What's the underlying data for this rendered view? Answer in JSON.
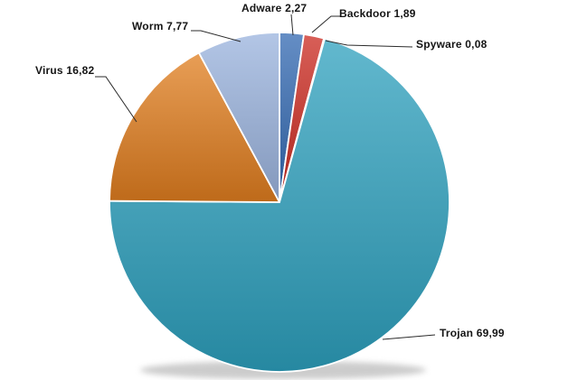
{
  "chart_data": {
    "type": "pie",
    "title": "",
    "legend": "none",
    "labels_style": "outside-with-leader-lines",
    "direction": "clockwise",
    "start_angle_deg": 0,
    "background_color": "#FFFFFF",
    "leader_line_color": "#2B2B2B",
    "label_text_color": "#151515",
    "slices": [
      {
        "name": "Adware",
        "value": 2.27,
        "label": "Adware 2,27",
        "color": "#3168B1"
      },
      {
        "name": "Backdoor",
        "value": 1.89,
        "label": "Backdoor 1,89",
        "color": "#CB2A20"
      },
      {
        "name": "Spyware",
        "value": 0.08,
        "label": "Spyware 0,08",
        "color": "#86A5D3"
      },
      {
        "name": "Trojan",
        "value": 69.99,
        "label": "Trojan 69,99",
        "color": "#2DA0BD"
      },
      {
        "name": "Virus",
        "value": 16.82,
        "label": "Virus 16,82",
        "color": "#E07D1E"
      },
      {
        "name": "Worm",
        "value": 7.77,
        "label": "Worm 7,77",
        "color": "#9AB3DD"
      }
    ]
  }
}
